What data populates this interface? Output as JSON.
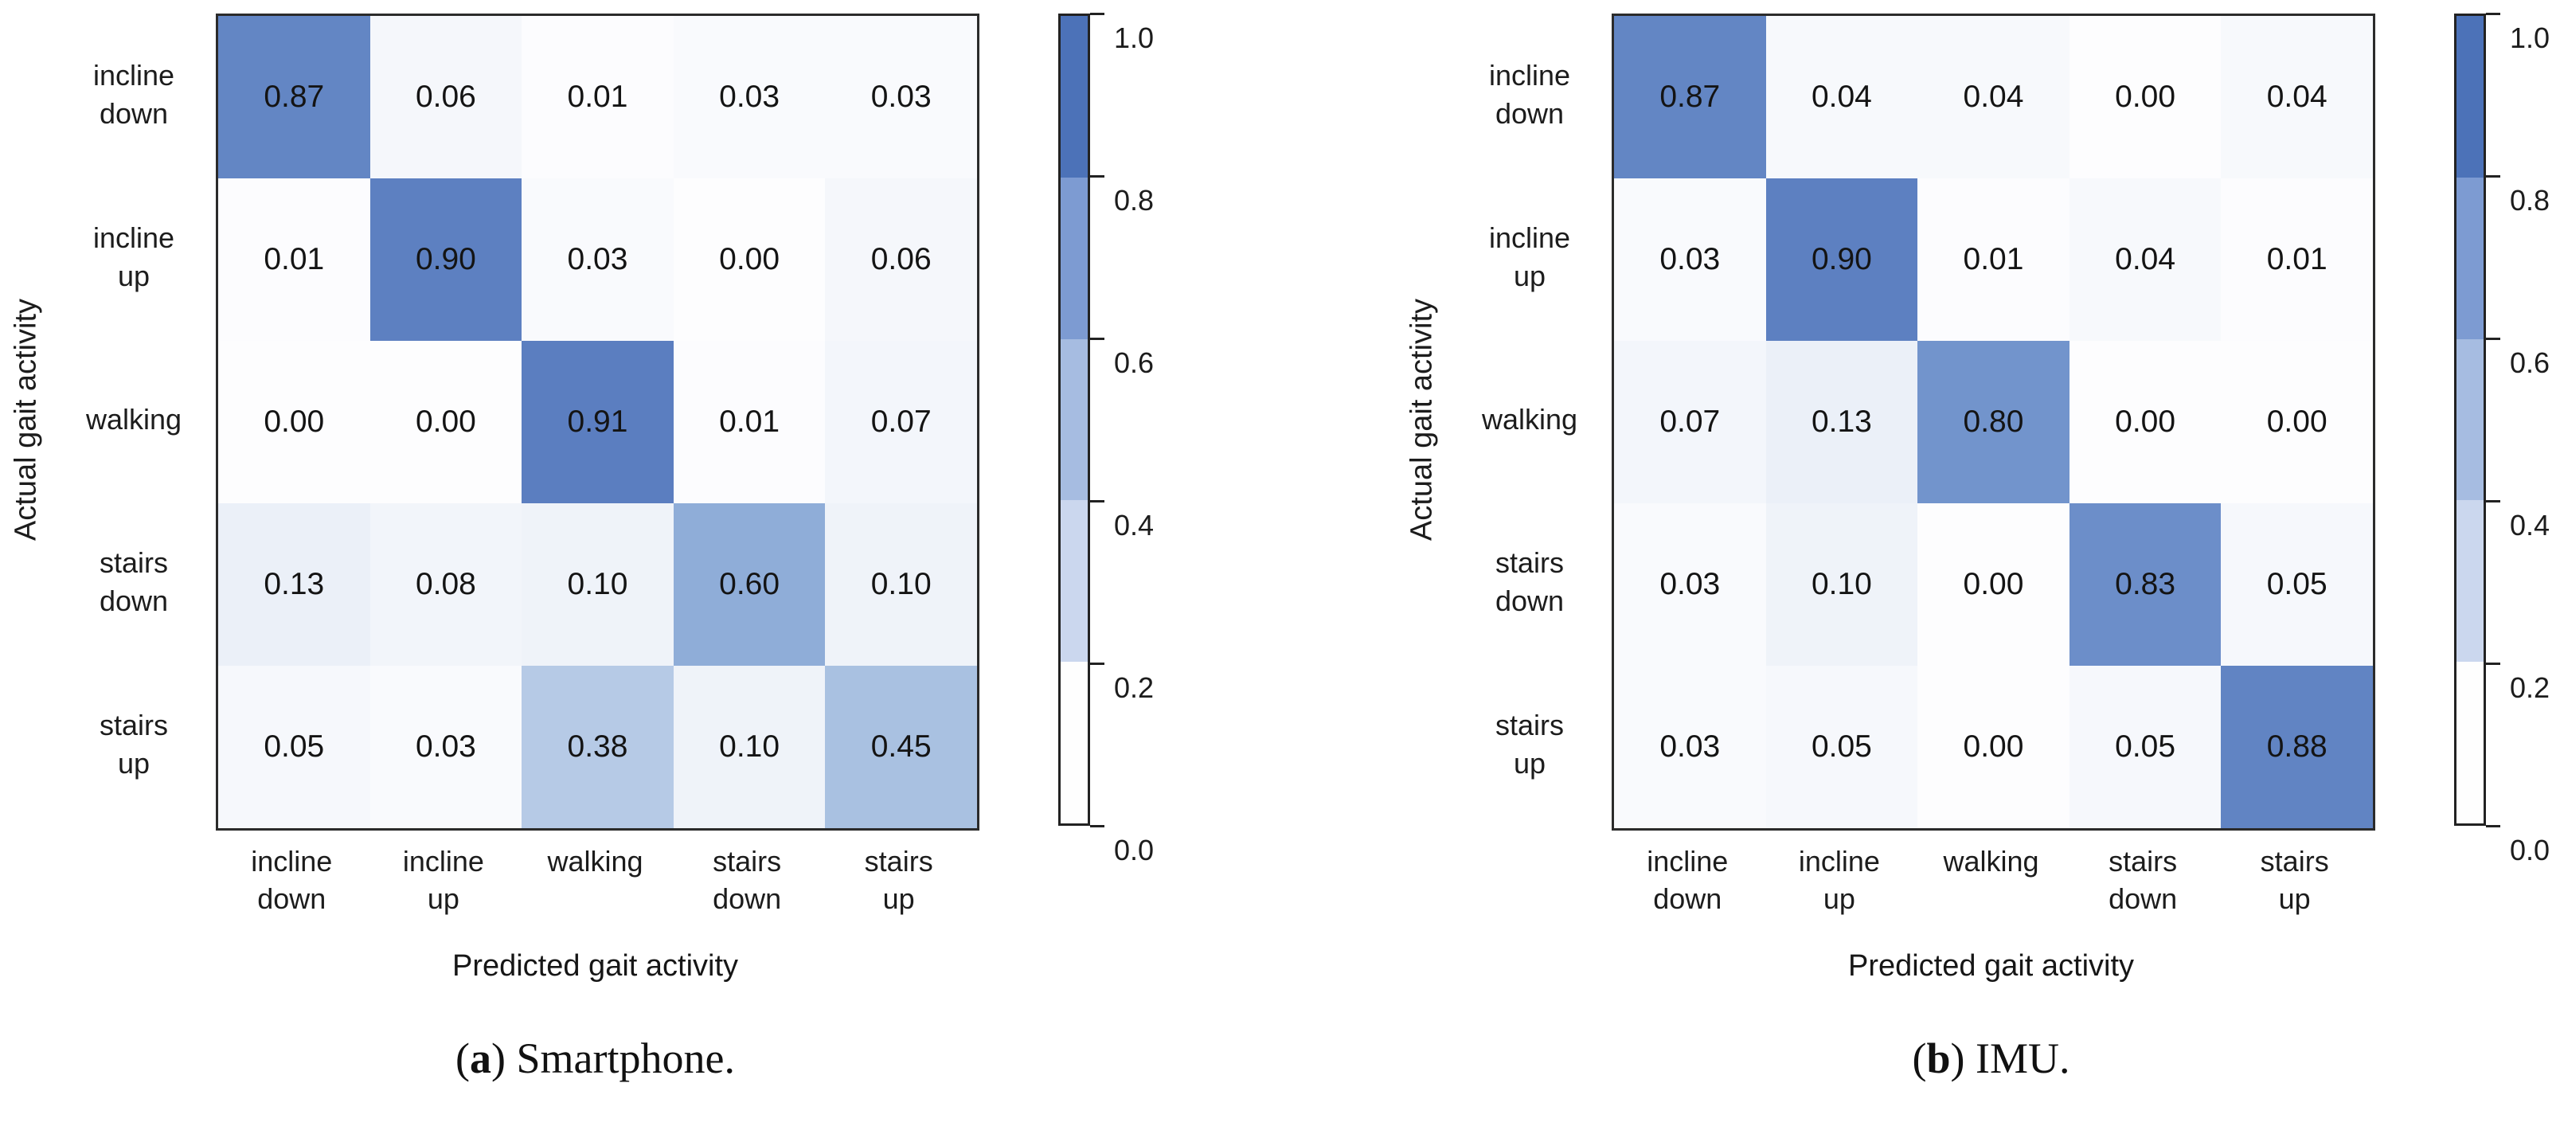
{
  "figure": {
    "panels": [
      {
        "id": "a",
        "caption_letter": "a",
        "caption_text": "Smartphone.",
        "x_axis_label": "Predicted gait activity",
        "y_axis_label": "Actual gait activity",
        "colorbar_tick_labels": [
          "1.0",
          "0.8",
          "0.6",
          "0.4",
          "0.2",
          "0.0"
        ]
      },
      {
        "id": "b",
        "caption_letter": "b",
        "caption_text": "IMU.",
        "x_axis_label": "Predicted gait activity",
        "y_axis_label": "Actual gait activity",
        "colorbar_tick_labels": [
          "1.0",
          "0.8",
          "0.6",
          "0.4",
          "0.2",
          "0.0"
        ]
      }
    ],
    "colors": {
      "background": "#ffffff",
      "cell_text": "#141414",
      "label_text": "#1c1c1c",
      "matrix_border": "#2b2b2b",
      "colorbar_border": "#222222",
      "colorbar_segments": [
        "#4c72b8",
        "#7d9bd2",
        "#a6bce1",
        "#cbd7ee",
        "#fefefe"
      ],
      "heatmap_ramp": [
        {
          "v": 0.0,
          "color": "#fdfdfe"
        },
        {
          "v": 0.15,
          "color": "#e8eef7"
        },
        {
          "v": 0.4,
          "color": "#b2c7e4"
        },
        {
          "v": 0.6,
          "color": "#8fadd8"
        },
        {
          "v": 0.8,
          "color": "#7294cc"
        },
        {
          "v": 1.0,
          "color": "#486cb6"
        }
      ]
    }
  },
  "chart_data": [
    {
      "type": "heatmap",
      "panel": "a",
      "title": "(a) Smartphone.",
      "xlabel": "Predicted gait activity",
      "ylabel": "Actual gait activity",
      "x_categories": [
        "incline down",
        "incline up",
        "walking",
        "stairs down",
        "stairs up"
      ],
      "y_categories": [
        "incline down",
        "incline up",
        "walking",
        "stairs down",
        "stairs up"
      ],
      "values": [
        [
          0.87,
          0.06,
          0.01,
          0.03,
          0.03
        ],
        [
          0.01,
          0.9,
          0.03,
          0.0,
          0.06
        ],
        [
          0.0,
          0.0,
          0.91,
          0.01,
          0.07
        ],
        [
          0.13,
          0.08,
          0.1,
          0.6,
          0.1
        ],
        [
          0.05,
          0.03,
          0.38,
          0.1,
          0.45
        ]
      ],
      "value_labels": [
        [
          "0.87",
          "0.06",
          "0.01",
          "0.03",
          "0.03"
        ],
        [
          "0.01",
          "0.90",
          "0.03",
          "0.00",
          "0.06"
        ],
        [
          "0.00",
          "0.00",
          "0.91",
          "0.01",
          "0.07"
        ],
        [
          "0.13",
          "0.08",
          "0.10",
          "0.60",
          "0.10"
        ],
        [
          "0.05",
          "0.03",
          "0.38",
          "0.10",
          "0.45"
        ]
      ],
      "value_range": [
        0,
        1
      ],
      "colorbar_ticks": [
        1.0,
        0.8,
        0.6,
        0.4,
        0.2,
        0.0
      ],
      "legend_position": "right-colorbar",
      "grid": false
    },
    {
      "type": "heatmap",
      "panel": "b",
      "title": "(b) IMU.",
      "xlabel": "Predicted gait activity",
      "ylabel": "Actual gait activity",
      "x_categories": [
        "incline down",
        "incline up",
        "walking",
        "stairs down",
        "stairs up"
      ],
      "y_categories": [
        "incline down",
        "incline up",
        "walking",
        "stairs down",
        "stairs up"
      ],
      "values": [
        [
          0.87,
          0.04,
          0.04,
          0.0,
          0.04
        ],
        [
          0.03,
          0.9,
          0.01,
          0.04,
          0.01
        ],
        [
          0.07,
          0.13,
          0.8,
          0.0,
          0.0
        ],
        [
          0.03,
          0.1,
          0.0,
          0.83,
          0.05
        ],
        [
          0.03,
          0.05,
          0.0,
          0.05,
          0.88
        ]
      ],
      "value_labels": [
        [
          "0.87",
          "0.04",
          "0.04",
          "0.00",
          "0.04"
        ],
        [
          "0.03",
          "0.90",
          "0.01",
          "0.04",
          "0.01"
        ],
        [
          "0.07",
          "0.13",
          "0.80",
          "0.00",
          "0.00"
        ],
        [
          "0.03",
          "0.10",
          "0.00",
          "0.83",
          "0.05"
        ],
        [
          "0.03",
          "0.05",
          "0.00",
          "0.05",
          "0.88"
        ]
      ],
      "value_range": [
        0,
        1
      ],
      "colorbar_ticks": [
        1.0,
        0.8,
        0.6,
        0.4,
        0.2,
        0.0
      ],
      "legend_position": "right-colorbar",
      "grid": false
    }
  ]
}
